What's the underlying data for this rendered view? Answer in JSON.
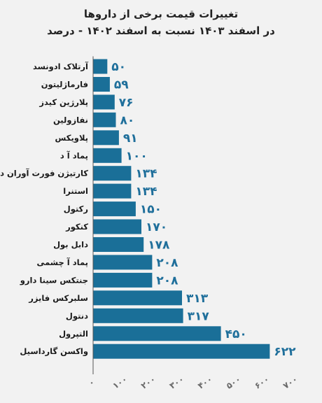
{
  "title_lines": [
    "تغییرات قیمت برخی از داروها",
    "در اسفند ۱۴۰۳ نسبت به اسفند ۱۴۰۲ - درصد"
  ],
  "chart_data": {
    "type": "bar",
    "orientation": "horizontal",
    "title": "تغییرات قیمت برخی از داروها در اسفند ۱۴۰۳ نسبت به اسفند ۱۴۰۲ - درصد",
    "categories": [
      "آرتلاک ادونسد",
      "فارماژلیتون",
      "پلارژین کیدز",
      "نفازولین",
      "پلاویکس",
      "پماد آ د",
      "کارتیژن فورت آوران دارو",
      "استنرا",
      "رکتول",
      "کنکور",
      "دابل بول",
      "پماد آ چشمی",
      "جنتکس سینا دارو",
      "سلبرکس فایزر",
      "دنتول",
      "التپرول",
      "واکسن گارداسیل"
    ],
    "values": [
      50,
      59,
      76,
      80,
      91,
      100,
      134,
      134,
      150,
      170,
      178,
      208,
      208,
      313,
      317,
      450,
      622
    ],
    "value_labels": [
      "۵۰",
      "۵۹",
      "۷۶",
      "۸۰",
      "۹۱",
      "۱۰۰",
      "۱۳۴",
      "۱۳۴",
      "۱۵۰",
      "۱۷۰",
      "۱۷۸",
      "۲۰۸",
      "۲۰۸",
      "۳۱۳",
      "۳۱۷",
      "۴۵۰",
      "۶۲۲"
    ],
    "xlim": [
      0,
      700
    ],
    "ticks": [
      0,
      100,
      200,
      300,
      400,
      500,
      600,
      700
    ],
    "tick_labels": [
      "۰",
      "۱۰۰",
      "۲۰۰",
      "۳۰۰",
      "۴۰۰",
      "۵۰۰",
      "۶۰۰",
      "۷۰۰"
    ],
    "grid": false,
    "colors": {
      "bar": "#1a6f98",
      "value_label": "#1f6f9b",
      "axis": "#555555",
      "tick_label": "#6a6a6a"
    }
  }
}
